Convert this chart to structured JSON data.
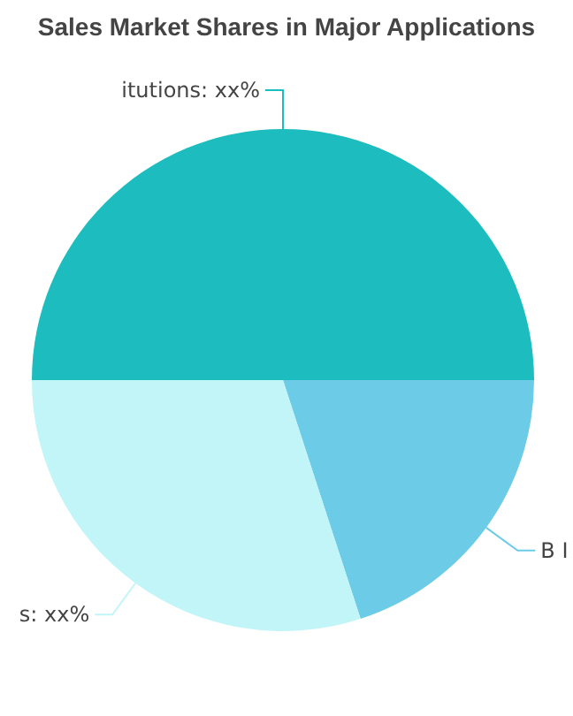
{
  "chart_data": {
    "type": "pie",
    "title": "Sales Market Shares in Major Applications",
    "categories": [
      "itutions: xx%",
      "B I",
      "s: xx%"
    ],
    "values": [
      50,
      20,
      30
    ],
    "colors": [
      "#1cbcbf",
      "#6ccbe6",
      "#c2f5f8"
    ]
  }
}
